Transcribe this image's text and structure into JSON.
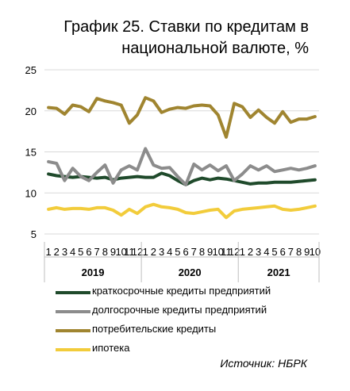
{
  "title_line1": "График 25. Ставки по кредитам в",
  "title_line2": "национальной валюте, %",
  "source": "Источник: НБРК",
  "chart_data": {
    "type": "line",
    "ylim": [
      5,
      25
    ],
    "yticks": [
      5,
      10,
      15,
      20,
      25
    ],
    "grid": true,
    "legend_position": "bottom",
    "x": [
      "1",
      "2",
      "3",
      "4",
      "5",
      "6",
      "7",
      "8",
      "9",
      "10",
      "11",
      "12",
      "1",
      "2",
      "3",
      "4",
      "5",
      "6",
      "7",
      "8",
      "9",
      "10",
      "11",
      "12",
      "1",
      "2",
      "3",
      "4",
      "5",
      "6",
      "7",
      "8",
      "9",
      "10"
    ],
    "year_labels": [
      "2019",
      "2020",
      "2021"
    ],
    "series": [
      {
        "name": "краткосрочные кредиты предприятий",
        "color": "#1f4a2b",
        "values": [
          12.3,
          12.1,
          12.0,
          11.9,
          12.0,
          11.9,
          11.8,
          11.9,
          11.6,
          11.8,
          11.9,
          12.0,
          11.9,
          11.9,
          12.4,
          12.1,
          11.5,
          11.0,
          11.5,
          11.8,
          11.6,
          11.8,
          11.7,
          11.5,
          11.3,
          11.1,
          11.2,
          11.2,
          11.3,
          11.3,
          11.3,
          11.4,
          11.5,
          11.6
        ]
      },
      {
        "name": "долгосрочные кредиты предприятий",
        "color": "#8c8c8c",
        "values": [
          13.8,
          13.6,
          11.5,
          13.0,
          12.0,
          11.5,
          12.5,
          13.4,
          11.2,
          12.8,
          13.3,
          12.8,
          15.4,
          13.4,
          13.0,
          13.1,
          12.0,
          11.0,
          13.5,
          12.8,
          13.4,
          12.7,
          13.3,
          11.5,
          12.3,
          13.3,
          12.8,
          13.3,
          12.6,
          12.8,
          13.0,
          12.8,
          13.0,
          13.3
        ]
      },
      {
        "name": "потребительские кредиты",
        "color": "#a08530",
        "values": [
          20.4,
          20.3,
          19.6,
          20.7,
          20.5,
          19.9,
          21.5,
          21.2,
          21.0,
          20.7,
          18.5,
          19.5,
          21.6,
          21.2,
          19.8,
          20.2,
          20.4,
          20.3,
          20.6,
          20.7,
          20.6,
          19.5,
          16.8,
          20.9,
          20.5,
          19.2,
          20.1,
          19.2,
          18.5,
          19.9,
          18.6,
          19.0,
          19.0,
          19.3
        ]
      },
      {
        "name": "ипотека",
        "color": "#f2cc3b",
        "values": [
          8.0,
          8.2,
          8.0,
          8.1,
          8.1,
          8.0,
          8.2,
          8.2,
          7.9,
          7.3,
          8.0,
          7.5,
          8.3,
          8.6,
          8.3,
          8.2,
          8.0,
          7.6,
          7.5,
          7.7,
          7.9,
          8.0,
          7.0,
          7.8,
          8.0,
          8.1,
          8.2,
          8.3,
          8.4,
          8.0,
          7.9,
          8.0,
          8.2,
          8.4
        ]
      }
    ]
  }
}
